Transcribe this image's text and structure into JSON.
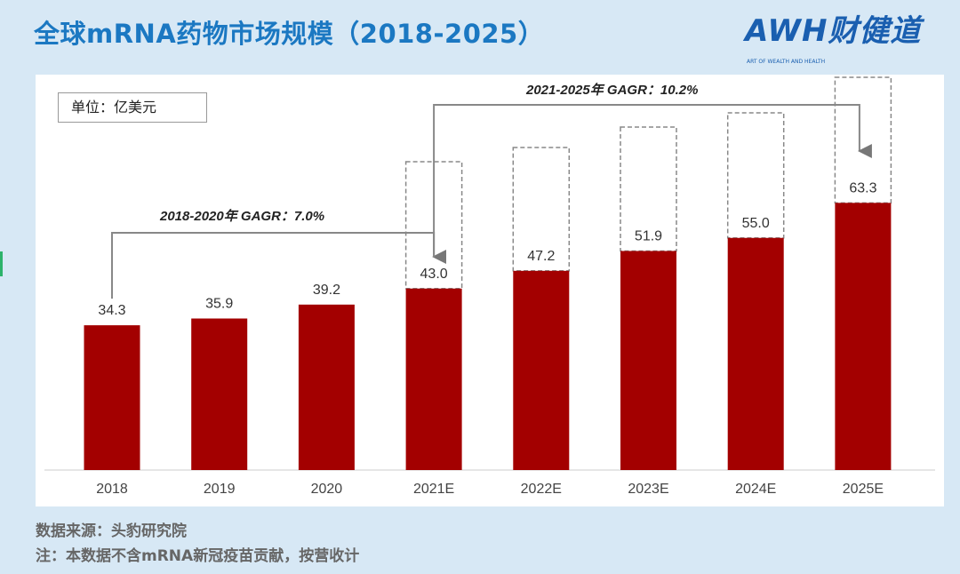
{
  "title": "全球mRNA药物市场规模（2018-2025）",
  "logo": {
    "brand": "AWH财健道",
    "tagline": "ART OF WEALTH AND HEALTH"
  },
  "unit_label": "单位：亿美元",
  "footnotes": {
    "source": "数据来源：头豹研究院",
    "note": "注：本数据不含mRNA新冠疫苗贡献，按营收计"
  },
  "colors": {
    "bar": "#a30000",
    "title": "#1b78c2",
    "background": "#d7e8f5"
  },
  "chart_data": {
    "type": "bar",
    "title": "全球mRNA药物市场规模（2018-2025）",
    "ylabel": "亿美元",
    "categories": [
      "2018",
      "2019",
      "2020",
      "2021E",
      "2022E",
      "2023E",
      "2024E",
      "2025E"
    ],
    "values": [
      34.3,
      35.9,
      39.2,
      43.0,
      47.2,
      51.9,
      55.0,
      63.3
    ],
    "data_labels": [
      "34.3",
      "35.9",
      "39.2",
      "43.0",
      "47.2",
      "51.9",
      "55.0",
      "63.3"
    ],
    "ylim": [
      0,
      100
    ],
    "grid": false,
    "annotations": [
      {
        "text": "2018-2020年  GAGR：7.0%",
        "from": "2018",
        "to": "2021E"
      },
      {
        "text": "2021-2025年    GAGR：10.2%",
        "from": "2021E",
        "to": "2025E"
      }
    ]
  }
}
